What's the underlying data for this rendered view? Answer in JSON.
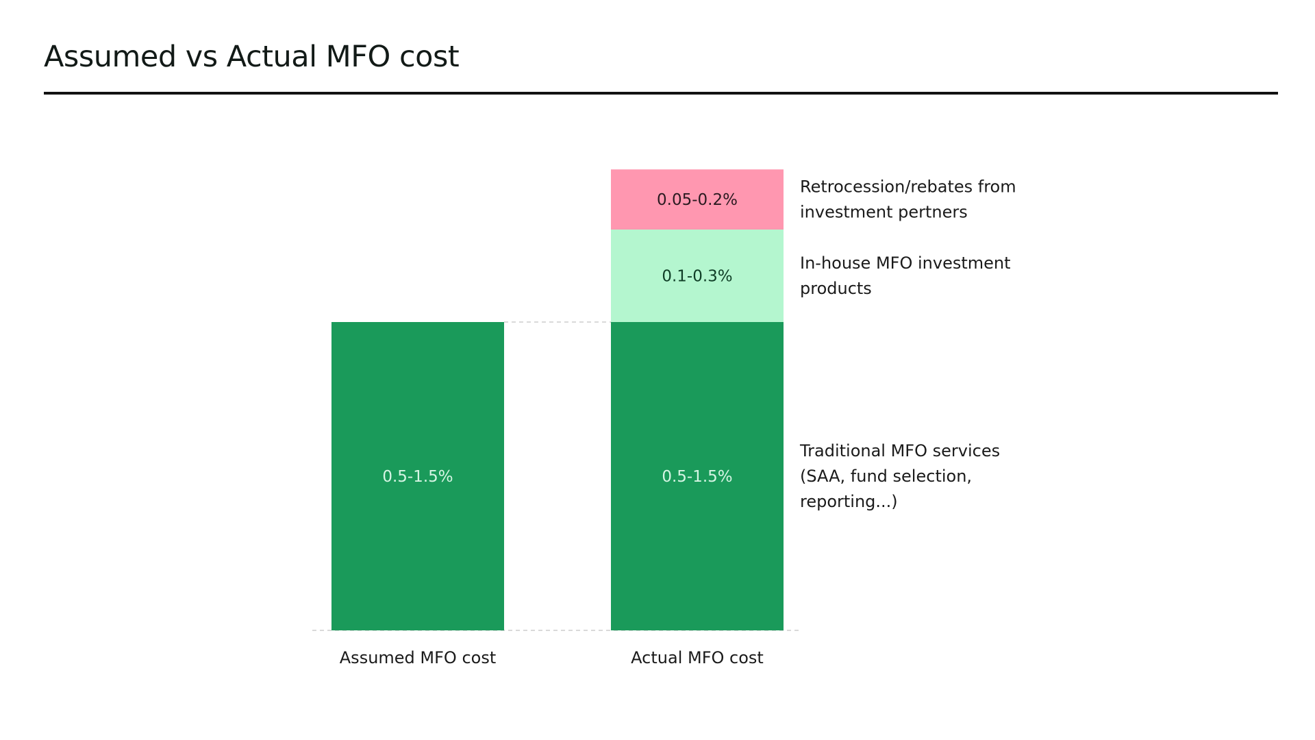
{
  "page": {
    "title": "Assumed vs Actual MFO cost"
  },
  "chart_data": {
    "type": "bar",
    "stacked": true,
    "title": "Assumed vs Actual MFO cost",
    "categories": [
      "Assumed MFO cost",
      "Actual MFO cost"
    ],
    "series": [
      {
        "key": "traditional",
        "values": [
          1.0,
          1.0
        ],
        "labels": [
          "0.5-1.5%",
          "0.5-1.5%"
        ],
        "color": "#1a9a5a",
        "label_color": "#d6f5e4",
        "annotation": [
          "Traditional MFO services",
          "(SAA, fund selection,",
          "reporting...)"
        ]
      },
      {
        "key": "inhouse",
        "values": [
          0,
          0.3
        ],
        "labels": [
          "",
          "0.1-0.3%"
        ],
        "color": "#b4f6cf",
        "label_color": "#0f3d26",
        "annotation": [
          "In-house MFO investment",
          "products"
        ]
      },
      {
        "key": "retrocession",
        "values": [
          0,
          0.195
        ],
        "labels": [
          "",
          "0.05-0.2%"
        ],
        "color": "#ff97b0",
        "label_color": "#2a1a20",
        "annotation": [
          "Retrocession/rebates from",
          "investment pertners"
        ]
      }
    ],
    "ylim": [
      0,
      1.5
    ],
    "grid": false,
    "dashed_reference_lines": [
      0,
      1.0
    ],
    "legend": "right"
  }
}
